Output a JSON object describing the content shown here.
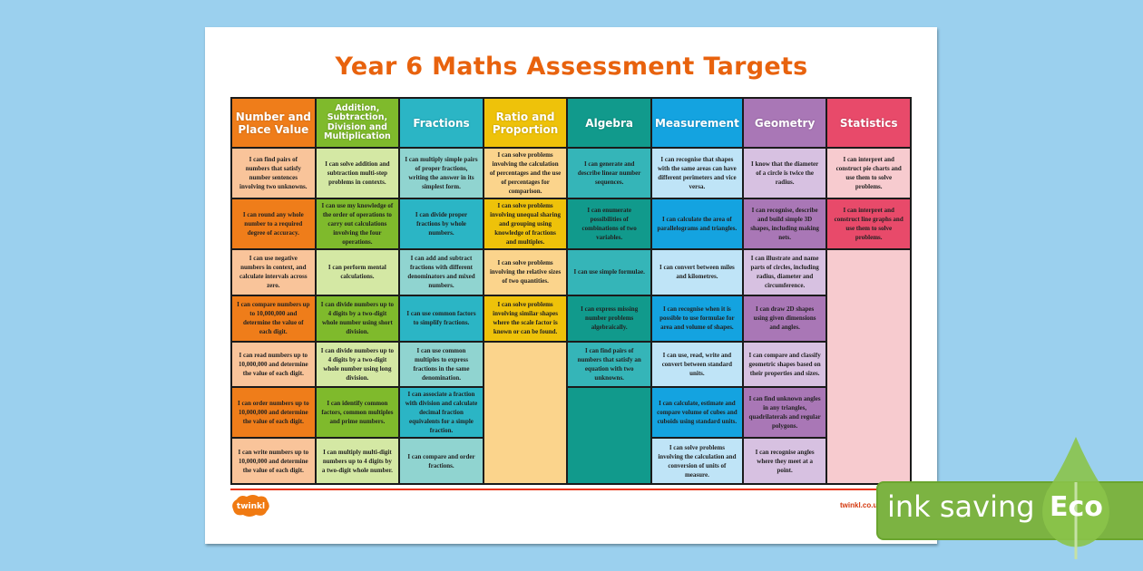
{
  "title": "Year 6 Maths Assessment Targets",
  "columns": [
    {
      "title": "Number and Place Value",
      "dark": "#ef7d1a",
      "light": "#f9c49a",
      "cells": [
        "I can find pairs of numbers that satisfy number sentences involving two unknowns.",
        "I can round any whole number to a required degree of accuracy.",
        "I can use negative numbers in context, and calculate intervals across zero.",
        "I can compare numbers up to 10,000,000 and determine the value of each digit.",
        "I can read numbers up to 10,000,000 and determine the value of each digit.",
        "I can order numbers up to 10,000,000 and determine the value of each digit.",
        "I can write numbers up to 10,000,000 and determine the value of each digit."
      ]
    },
    {
      "title": "Addition, Subtraction, Division and Multiplication",
      "dark": "#7fba2c",
      "light": "#d4e8a4",
      "cells": [
        "I can solve addition and subtraction multi-step problems in contexts.",
        "I can use my knowledge of the order of operations to carry out calculations involving the four operations.",
        "I can perform mental calculations.",
        "I can divide numbers up to 4 digits by a two-digit whole number using short division.",
        "I can divide numbers up to 4 digits by a two-digit whole number using long division.",
        "I can identify common factors, common multiples and prime numbers.",
        "I can multiply multi-digit numbers up to 4 digits by a two-digit whole number."
      ]
    },
    {
      "title": "Fractions",
      "dark": "#2bb5c5",
      "light": "#90d4d0",
      "cells": [
        "I can multiply simple pairs of proper fractions, writing the answer in its simplest form.",
        "I can divide proper fractions by whole numbers.",
        "I can add and subtract fractions with different denominators and mixed numbers.",
        "I can use common factors to simplify fractions.",
        "I can use common multiples to express fractions in the same denomination.",
        "I can associate a fraction with division and calculate decimal fraction equivalents for a simple fraction.",
        "I can compare and order fractions."
      ]
    },
    {
      "title": "Ratio and Proportion",
      "dark": "#eec20a",
      "light": "#fbd48c",
      "cells": [
        "I can solve problems involving the calculation of percentages and the use of percentages for comparison.",
        "I can solve problems involving unequal sharing and grouping using knowledge of fractions and multiples.",
        "I can solve problems involving the relative sizes of two quantities.",
        "I can solve problems involving similar shapes where the scale factor is known or can be found."
      ]
    },
    {
      "title": "Algebra",
      "dark": "#119a8c",
      "light": "#35b5b8",
      "cells": [
        "I can generate and describe linear number sequences.",
        "I can enumerate possibilities of combinations of two variables.",
        "I can use simple formulae.",
        "I can express missing number problems algebraically.",
        "I can find pairs of numbers that satisfy an equation with two unknowns."
      ]
    },
    {
      "title": "Measurement",
      "dark": "#14a3e0",
      "light": "#bfe4f7",
      "cells": [
        "I can recognise that shapes with the same areas can have different perimeters and vice versa.",
        "I can calculate the area of parallelograms and triangles.",
        "I can convert between miles and kilometres.",
        "I can recognise when it is possible to use formulae for area and volume of shapes.",
        "I can use, read, write and convert between standard units.",
        "I can calculate, estimate and compare volume of cubes and cuboids using standard units.",
        "I can solve problems involving the calculation and conversion of units of measure."
      ]
    },
    {
      "title": "Geometry",
      "dark": "#a977b6",
      "light": "#d7c1e1",
      "cells": [
        "I know that the diameter of a circle is twice the radius.",
        "I can recognise, describe and build simple 3D shapes, including making nets.",
        "I can illustrate and name parts of circles, including radius, diameter and circumference.",
        "I can draw 2D shapes using given dimensions and angles.",
        "I can compare and classify geometric shapes based on their properties and sizes.",
        "I can find unknown angles in any triangles, quadrilaterals and regular polygons.",
        "I can recognise angles where they meet at a point."
      ]
    },
    {
      "title": "Statistics",
      "dark": "#e84a6a",
      "light": "#f7cbcf",
      "cells": [
        "I can interpret and construct pie charts and use them to solve problems.",
        "I can interpret and construct line graphs and use them to solve problems."
      ]
    }
  ],
  "footer": {
    "logo": "twinkl",
    "site": "twinkl.co.uk"
  },
  "badge": {
    "text": "ink saving",
    "eco": "Eco",
    "icon": "leaf-icon",
    "color": "#7cb342"
  },
  "colors": {
    "background": "#9bd0ee",
    "title": "#e8620d"
  }
}
